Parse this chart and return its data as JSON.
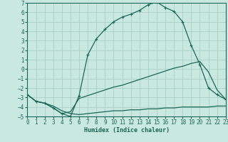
{
  "xlabel": "Humidex (Indice chaleur)",
  "background_color": "#c8e8e0",
  "grid_color": "#a8d0c8",
  "line_color": "#1a6858",
  "xlim": [
    0,
    23
  ],
  "ylim": [
    -5,
    7
  ],
  "xticks": [
    0,
    1,
    2,
    3,
    4,
    5,
    6,
    7,
    8,
    9,
    10,
    11,
    12,
    13,
    14,
    15,
    16,
    17,
    18,
    19,
    20,
    21,
    22,
    23
  ],
  "yticks": [
    -5,
    -4,
    -3,
    -2,
    -1,
    0,
    1,
    2,
    3,
    4,
    5,
    6,
    7
  ],
  "curve_main_x": [
    0,
    1,
    2,
    3,
    4,
    5,
    6,
    7,
    8,
    9,
    10,
    11,
    12,
    13,
    14,
    15,
    16,
    17,
    18,
    19,
    20,
    21,
    22,
    23
  ],
  "curve_main_y": [
    -2.7,
    -3.4,
    -3.6,
    -4.1,
    -4.7,
    -5.0,
    -2.8,
    1.5,
    3.2,
    4.2,
    5.0,
    5.5,
    5.8,
    6.2,
    6.8,
    7.1,
    6.5,
    6.1,
    5.0,
    2.5,
    0.5,
    -2.0,
    -2.7,
    -3.2
  ],
  "curve_diag_x": [
    0,
    1,
    2,
    3,
    4,
    5,
    6,
    7,
    8,
    9,
    10,
    11,
    12,
    13,
    14,
    15,
    16,
    17,
    18,
    19,
    20,
    21,
    22,
    23
  ],
  "curve_diag_y": [
    -2.7,
    -3.4,
    -3.6,
    -4.1,
    -4.7,
    -4.5,
    -3.1,
    -2.8,
    -2.5,
    -2.2,
    -1.9,
    -1.7,
    -1.4,
    -1.1,
    -0.8,
    -0.5,
    -0.2,
    0.1,
    0.3,
    0.6,
    0.8,
    -0.3,
    -2.2,
    -3.2
  ],
  "curve_flat_x": [
    0,
    1,
    2,
    3,
    4,
    5,
    6,
    7,
    8,
    9,
    10,
    11,
    12,
    13,
    14,
    15,
    16,
    17,
    18,
    19,
    20,
    21,
    22,
    23
  ],
  "curve_flat_y": [
    -2.7,
    -3.4,
    -3.6,
    -3.9,
    -4.4,
    -4.7,
    -4.8,
    -4.7,
    -4.6,
    -4.5,
    -4.4,
    -4.4,
    -4.3,
    -4.3,
    -4.2,
    -4.2,
    -4.1,
    -4.1,
    -4.0,
    -4.0,
    -4.0,
    -4.0,
    -3.9,
    -3.9
  ]
}
